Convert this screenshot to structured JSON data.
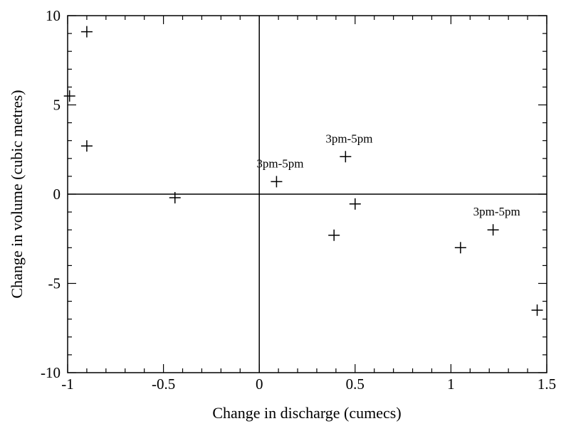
{
  "chart_data": {
    "type": "scatter",
    "title": "",
    "xlabel": "Change in discharge (cumecs)",
    "ylabel": "Change in volume (cubic metres)",
    "xlim": [
      -1,
      1.5
    ],
    "ylim": [
      -10,
      10
    ],
    "xticks": [
      -1,
      -0.5,
      0,
      0.5,
      1,
      1.5
    ],
    "xtick_labels": [
      "-1",
      "-0.5",
      "0",
      "0.5",
      "1",
      "1.5"
    ],
    "yticks": [
      -10,
      -5,
      0,
      5,
      10
    ],
    "ytick_labels": [
      "-10",
      "-5",
      "0",
      "5",
      "10"
    ],
    "grid": false,
    "marker": "+",
    "reference_lines": {
      "x": 0,
      "y": 0
    },
    "points": [
      {
        "x": -0.9,
        "y": 9.1
      },
      {
        "x": -0.99,
        "y": 5.5
      },
      {
        "x": -0.9,
        "y": 2.7
      },
      {
        "x": -0.44,
        "y": -0.2
      },
      {
        "x": 0.09,
        "y": 0.7
      },
      {
        "x": 0.45,
        "y": 2.1
      },
      {
        "x": 0.5,
        "y": -0.55
      },
      {
        "x": 0.39,
        "y": -2.3
      },
      {
        "x": 1.05,
        "y": -3.0
      },
      {
        "x": 1.22,
        "y": -2.0
      },
      {
        "x": 1.45,
        "y": -6.5
      }
    ],
    "annotations": [
      {
        "text": "3pm-5pm",
        "x": 0.09,
        "y": 0.7
      },
      {
        "text": "3pm-5pm",
        "x": 0.45,
        "y": 2.1
      },
      {
        "text": "3pm-5pm",
        "x": 1.22,
        "y": -2.0
      }
    ]
  }
}
